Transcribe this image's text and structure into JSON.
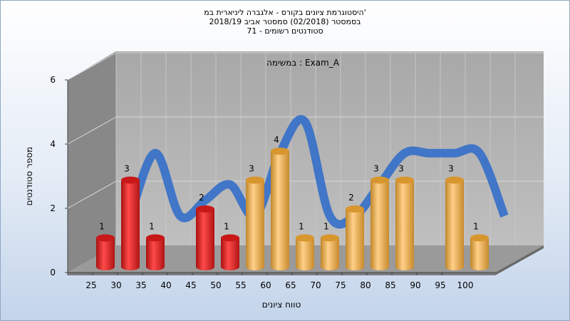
{
  "title": {
    "line1": "היסטוגרמת ציונים בקורס - אלגברה ליניארית במ'",
    "line2": "בסמסטר  (02/2018)  סמסטר אביב 2018/19",
    "line3": "סטודנטים רשומים - 71"
  },
  "chart_data": {
    "type": "bar",
    "subtitle": "במשימה : Exam_A",
    "xlabel": "טווח ציונים",
    "ylabel": "מספר סטודנטים",
    "categories": [
      "25",
      "30",
      "35",
      "40",
      "45",
      "50",
      "55",
      "60",
      "65",
      "70",
      "75",
      "80",
      "85",
      "90",
      "95",
      "100"
    ],
    "values": [
      1,
      3,
      1,
      null,
      2,
      1,
      3,
      4,
      1,
      1,
      2,
      3,
      3,
      null,
      3,
      1
    ],
    "bar_colors": [
      "red",
      "red",
      "red",
      null,
      "red",
      "red",
      "gold",
      "gold",
      "gold",
      "gold",
      "gold",
      "gold",
      "gold",
      null,
      "gold",
      "gold"
    ],
    "yticks": [
      0,
      2,
      4,
      6
    ],
    "ylim": [
      0,
      6
    ],
    "trend_line": "smoothed curve through bar values",
    "colors": {
      "fail_bar": "#e02020",
      "pass_bar": "#e8a838",
      "trend_line": "#3a72c8",
      "back_wall": "#b4b4b4",
      "side_wall": "#888888",
      "floor": "#9c9c9c"
    }
  }
}
